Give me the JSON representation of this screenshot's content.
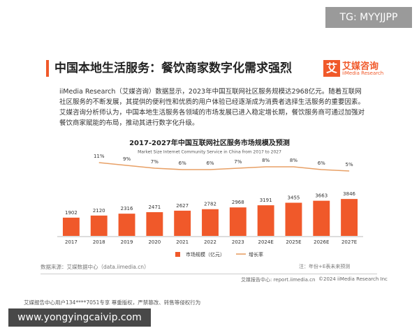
{
  "watermark_top": "TG: MYYJJPP",
  "header": {
    "title": "中国本地生活服务：餐饮商家数字化需求强烈",
    "logo_icon": "艾",
    "logo_cn": "艾媒咨询",
    "logo_en": "iiMedia Research"
  },
  "paragraph": "iiMedia Research（艾媒咨询）数据显示，2023年中国互联网社区服务规模达2968亿元。随着互联网社区服务的不断发展，其提供的便利性和优质的用户体验已经逐渐成为消费者选择生活服务的重要因素。艾媒咨询分析师认为，中国本地生活服务各领域的市场发展已进入稳定增长期，餐饮服务商可通过加强对餐饮商家赋能的布局，推动其进行数字化升级。",
  "chart_data": {
    "type": "bar",
    "title": "2017-2027年中国互联网社区服务市场规模及预测",
    "subtitle": "Market Size Internet Community Service in China from 2017 to 2027",
    "categories": [
      "2017",
      "2018",
      "2019",
      "2020",
      "2021",
      "2022",
      "2023",
      "2024E",
      "2025E",
      "2026E",
      "2027E"
    ],
    "series": [
      {
        "name": "市场规模（亿元）",
        "color": "#f0592a",
        "values": [
          1902,
          2120,
          2316,
          2471,
          2627,
          2782,
          2968,
          3191,
          3455,
          3663,
          3846
        ]
      },
      {
        "name": "增长率",
        "color": "#e8a066",
        "type": "line",
        "axis": "y2",
        "values": [
          null,
          11,
          9,
          7,
          6,
          6,
          7,
          8,
          8,
          6,
          5
        ],
        "value_labels": [
          null,
          "11%",
          "9%",
          "7%",
          "6%",
          "6%",
          "7%",
          "8%",
          "8%",
          "6%",
          "5%"
        ]
      }
    ],
    "ylim": [
      0,
      8000
    ],
    "y2lim": [
      -5,
      15
    ]
  },
  "source": "数据来源：艾媒数据中心（data.iimedia.cn）",
  "note": "注：年份+E表未来预测",
  "footer": {
    "site": "艾媒报告中心: report.iimedia.cn",
    "copyright": "©2024  iiMedia Research Inc"
  },
  "notice": "艾媒报告中心用户134****7051专享 尊重版权，严禁篡改、转售等侵权行为",
  "watermark_bottom": "www.yongyingcaivip.com"
}
